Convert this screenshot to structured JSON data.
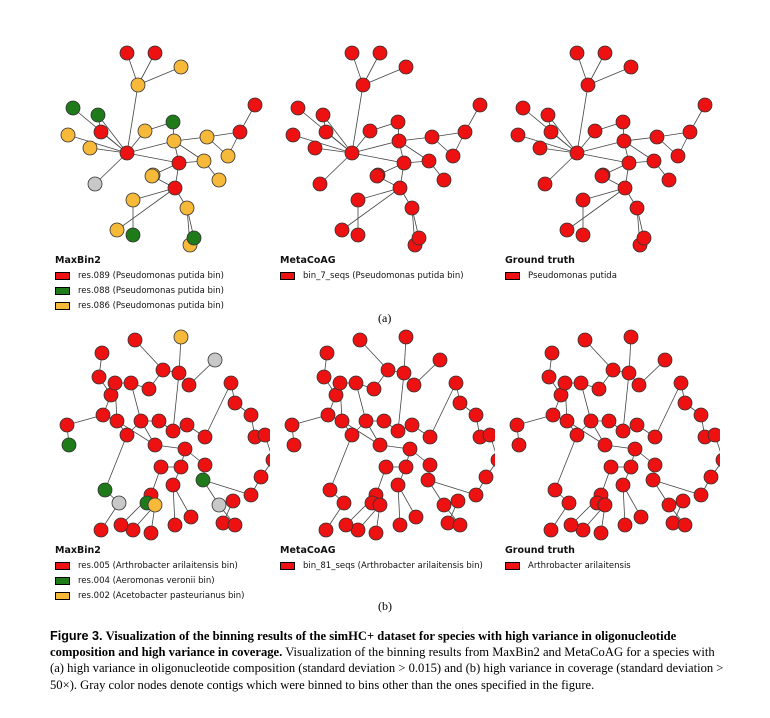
{
  "colors": {
    "red": "#ee1111",
    "green": "#1f7a1a",
    "orange": "#f6b93a",
    "gray": "#c8c8c8",
    "edge": "#444444"
  },
  "panels": {
    "a": {
      "label": "(a)",
      "graphs": [
        {
          "title": "MaxBin2",
          "items": [
            {
              "color": "red",
              "text": "res.089 (Pseudomonas putida bin)"
            },
            {
              "color": "green",
              "text": "res.088 (Pseudomonas putida bin)"
            },
            {
              "color": "orange",
              "text": "res.086 (Pseudomonas putida bin)"
            }
          ]
        },
        {
          "title": "MetaCoAG",
          "items": [
            {
              "color": "red",
              "text": "bin_7_seqs (Pseudomonas putida bin)"
            }
          ]
        },
        {
          "title": "Ground truth",
          "items": [
            {
              "color": "red",
              "text": "Pseudomonas putida"
            }
          ]
        }
      ]
    },
    "b": {
      "label": "(b)",
      "graphs": [
        {
          "title": "MaxBin2",
          "items": [
            {
              "color": "red",
              "text": "res.005 (Arthrobacter arilaitensis bin)"
            },
            {
              "color": "green",
              "text": "res.004 (Aeromonas veronii bin)"
            },
            {
              "color": "orange",
              "text": "res.002 (Acetobacter pasteurianus bin)"
            }
          ]
        },
        {
          "title": "MetaCoAG",
          "items": [
            {
              "color": "red",
              "text": "bin_81_seqs (Arthrobacter arilaitensis bin)"
            }
          ]
        },
        {
          "title": "Ground truth",
          "items": [
            {
              "color": "red",
              "text": "Arthrobacter arilaitensis"
            }
          ]
        }
      ]
    }
  },
  "caption": {
    "lead": "Figure 3.",
    "bold": "Visualization of the binning results of the simHC+ dataset for species with high variance in oligonucleotide composition and high variance in coverage.",
    "text": "Visualization of the binning results from MaxBin2 and MetaCoAG for a species with (a) high variance in oligonucleotide composition (standard deviation > 0.015) and (b) high variance in coverage (standard deviation > 50×). Gray color nodes denote contigs which were binned to bins other than the ones specified in the figure."
  }
}
